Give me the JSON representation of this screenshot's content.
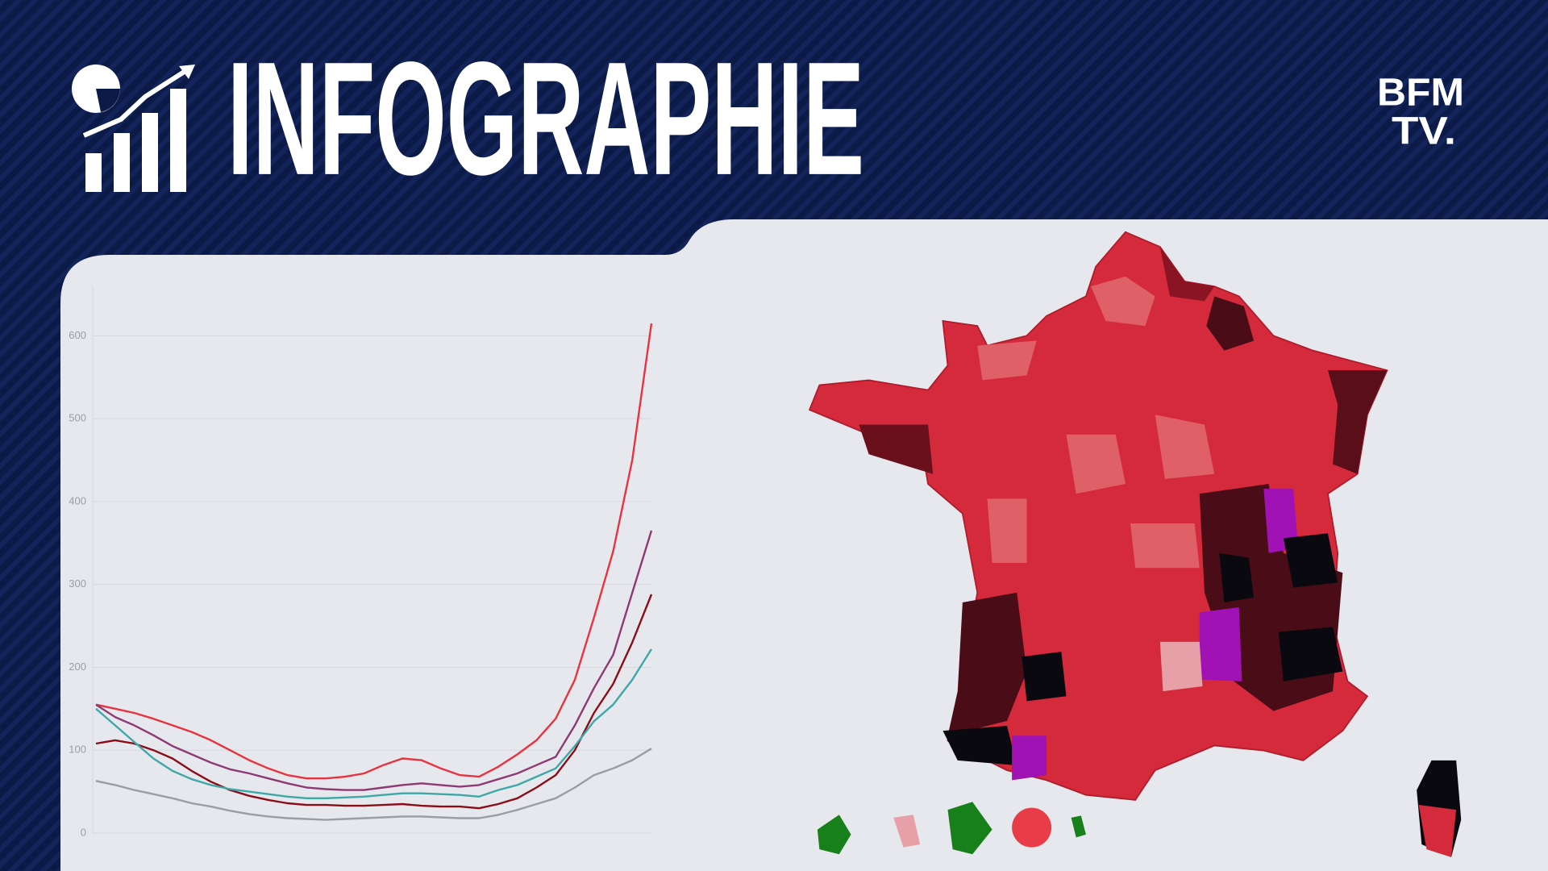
{
  "header": {
    "title": "INFOGRAPHIE",
    "brand": [
      "BFM",
      "TV."
    ]
  },
  "chart_data": {
    "type": "line",
    "categories": [
      null,
      null,
      null,
      null,
      null,
      null,
      null,
      null,
      null,
      null,
      null,
      null,
      null,
      null,
      null,
      null,
      null,
      null,
      null,
      null,
      null,
      null,
      null,
      null,
      null,
      null,
      null,
      null,
      null,
      null
    ],
    "series": [
      {
        "color": "#e8323f",
        "values": [
          155,
          150,
          145,
          138,
          130,
          122,
          112,
          100,
          88,
          78,
          70,
          66,
          66,
          68,
          72,
          82,
          90,
          88,
          78,
          70,
          68,
          80,
          95,
          112,
          138,
          185,
          260,
          340,
          450,
          615
        ]
      },
      {
        "color": "#8e3a72",
        "values": [
          155,
          140,
          130,
          118,
          105,
          95,
          85,
          77,
          72,
          66,
          60,
          55,
          53,
          52,
          52,
          55,
          58,
          60,
          58,
          56,
          58,
          65,
          72,
          82,
          92,
          130,
          175,
          215,
          290,
          365
        ]
      },
      {
        "color": "#8a0d18",
        "values": [
          108,
          112,
          108,
          100,
          90,
          75,
          62,
          52,
          45,
          40,
          36,
          34,
          34,
          33,
          33,
          34,
          35,
          33,
          32,
          32,
          30,
          35,
          42,
          55,
          70,
          100,
          145,
          180,
          230,
          288
        ]
      },
      {
        "color": "#3ea8a8",
        "values": [
          150,
          130,
          110,
          90,
          75,
          65,
          58,
          53,
          50,
          47,
          44,
          42,
          42,
          43,
          44,
          46,
          48,
          48,
          47,
          46,
          44,
          52,
          58,
          68,
          78,
          105,
          135,
          155,
          185,
          222
        ]
      },
      {
        "color": "#9c9ca4",
        "values": [
          63,
          58,
          52,
          47,
          42,
          36,
          32,
          27,
          23,
          20,
          18,
          17,
          16,
          17,
          18,
          19,
          20,
          20,
          19,
          18,
          18,
          22,
          28,
          35,
          42,
          55,
          70,
          78,
          88,
          102
        ]
      }
    ],
    "ylim": [
      0,
      650
    ],
    "yticks": [
      0,
      100,
      200,
      300,
      400,
      500,
      600
    ],
    "grid": true
  }
}
